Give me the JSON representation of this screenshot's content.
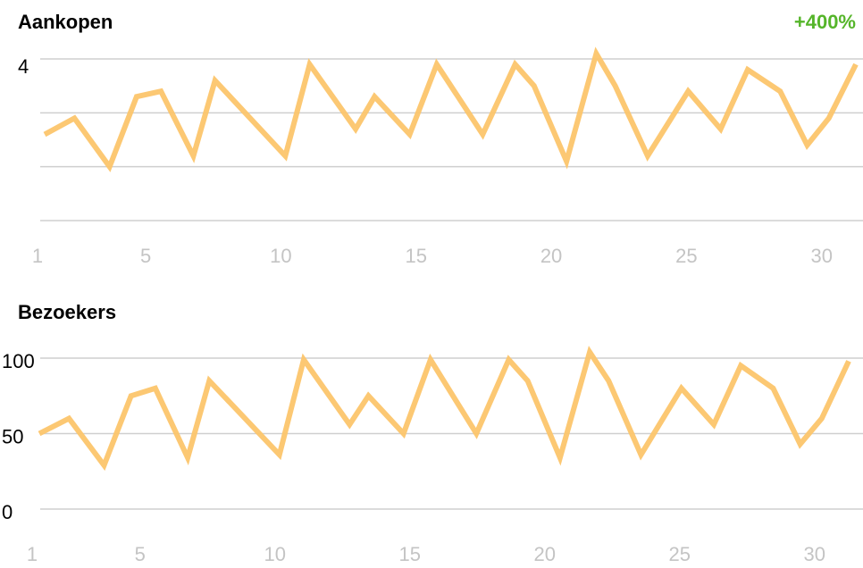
{
  "chart_data": [
    {
      "type": "line",
      "title": "Aankopen",
      "annotation": "+400%",
      "x": [
        1,
        2.1,
        3.4,
        4.4,
        5.3,
        6.5,
        7.3,
        9.9,
        10.8,
        12.5,
        13.2,
        14.5,
        15.5,
        17.2,
        18.4,
        19.1,
        20.3,
        21.4,
        22.1,
        23.3,
        24.8,
        26.0,
        27.0,
        28.2,
        29.2,
        30.0,
        31.0
      ],
      "values": [
        2.6,
        2.9,
        2.0,
        3.3,
        3.4,
        2.2,
        3.6,
        2.2,
        3.9,
        2.7,
        3.3,
        2.6,
        3.9,
        2.6,
        3.9,
        3.5,
        2.1,
        4.1,
        3.5,
        2.2,
        3.4,
        2.7,
        3.8,
        3.4,
        2.4,
        2.9,
        3.9
      ],
      "color": "#fcc56c",
      "xlim": [
        1,
        31
      ],
      "xticks": [
        1,
        5,
        10,
        15,
        20,
        25,
        30
      ],
      "ylim": [
        1,
        4
      ],
      "yticks": [
        {
          "value": 1,
          "label": null
        },
        {
          "value": 2,
          "label": null
        },
        {
          "value": 3,
          "label": null
        },
        4
      ],
      "grid": true
    },
    {
      "type": "line",
      "title": "Bezoekers",
      "x": [
        1,
        2.1,
        3.4,
        4.4,
        5.3,
        6.5,
        7.3,
        9.9,
        10.8,
        12.5,
        13.2,
        14.5,
        15.5,
        17.2,
        18.4,
        19.1,
        20.3,
        21.4,
        22.1,
        23.3,
        24.8,
        26.0,
        27.0,
        28.2,
        29.2,
        30.0,
        31.0
      ],
      "values": [
        50,
        60,
        29,
        75,
        80,
        34,
        85,
        36,
        99,
        56,
        75,
        50,
        99,
        50,
        99,
        85,
        34,
        104,
        85,
        36,
        80,
        56,
        95,
        80,
        43,
        60,
        98
      ],
      "color": "#fcc56c",
      "xlim": [
        1,
        31
      ],
      "xticks": [
        1,
        5,
        10,
        15,
        20,
        25,
        30
      ],
      "ylim": [
        0,
        100
      ],
      "yticks": [
        0,
        50,
        100
      ],
      "grid": true
    }
  ]
}
